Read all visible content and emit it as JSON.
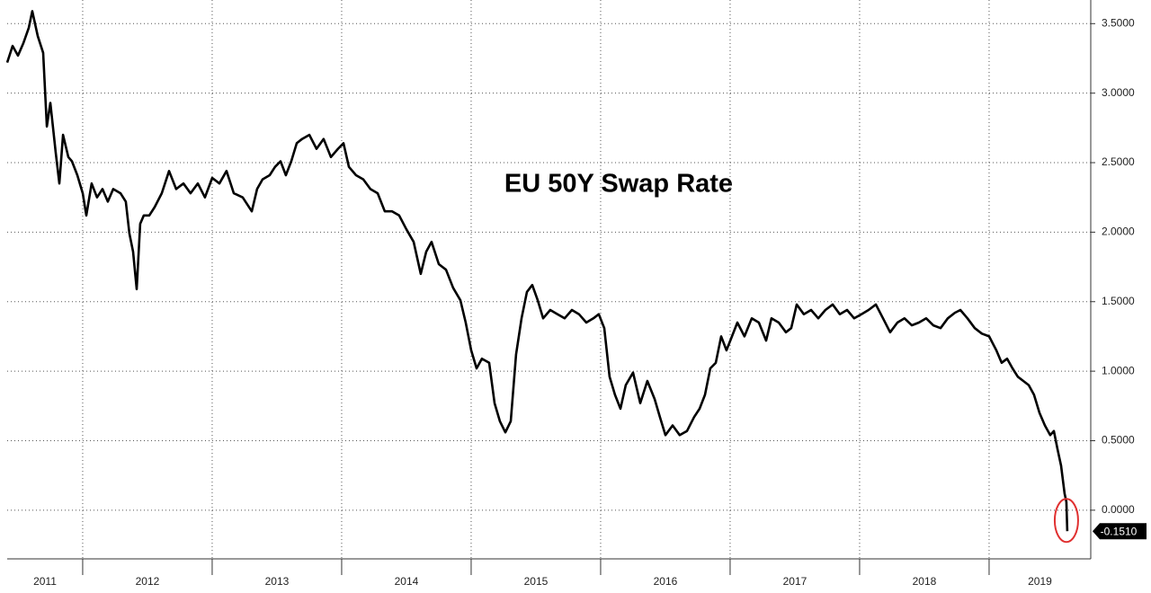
{
  "chart_data": {
    "type": "line",
    "title": "EU 50Y Swap Rate",
    "color": "#000000",
    "x": [
      2011.417,
      2011.459,
      2011.5,
      2011.542,
      2011.584,
      2011.611,
      2011.653,
      2011.695,
      2011.723,
      2011.75,
      2011.792,
      2011.82,
      2011.848,
      2011.889,
      2011.917,
      2011.959,
      2012.0,
      2012.028,
      2012.069,
      2012.111,
      2012.153,
      2012.194,
      2012.236,
      2012.292,
      2012.333,
      2012.361,
      2012.389,
      2012.417,
      2012.444,
      2012.472,
      2012.514,
      2012.556,
      2012.611,
      2012.667,
      2012.722,
      2012.778,
      2012.833,
      2012.889,
      2012.944,
      2013.0,
      2013.056,
      2013.111,
      2013.167,
      2013.236,
      2013.306,
      2013.347,
      2013.389,
      2013.444,
      2013.486,
      2013.528,
      2013.569,
      2013.611,
      2013.653,
      2013.694,
      2013.75,
      2013.806,
      2013.861,
      2013.917,
      2013.972,
      2014.014,
      2014.056,
      2014.111,
      2014.167,
      2014.222,
      2014.278,
      2014.333,
      2014.389,
      2014.444,
      2014.5,
      2014.556,
      2014.611,
      2014.653,
      2014.694,
      2014.75,
      2014.806,
      2014.861,
      2014.917,
      2014.958,
      2015.0,
      2015.042,
      2015.083,
      2015.139,
      2015.181,
      2015.222,
      2015.264,
      2015.306,
      2015.347,
      2015.389,
      2015.431,
      2015.472,
      2015.514,
      2015.556,
      2015.611,
      2015.667,
      2015.722,
      2015.778,
      2015.833,
      2015.889,
      2015.944,
      2015.986,
      2016.028,
      2016.069,
      2016.111,
      2016.153,
      2016.194,
      2016.25,
      2016.306,
      2016.361,
      2016.417,
      2016.458,
      2016.5,
      2016.556,
      2016.611,
      2016.667,
      2016.722,
      2016.764,
      2016.806,
      2016.847,
      2016.889,
      2016.931,
      2016.972,
      2017.014,
      2017.056,
      2017.111,
      2017.167,
      2017.222,
      2017.278,
      2017.319,
      2017.375,
      2017.431,
      2017.472,
      2017.514,
      2017.569,
      2017.625,
      2017.681,
      2017.736,
      2017.792,
      2017.847,
      2017.903,
      2017.958,
      2018.014,
      2018.069,
      2018.125,
      2018.181,
      2018.236,
      2018.292,
      2018.347,
      2018.403,
      2018.458,
      2018.514,
      2018.569,
      2018.625,
      2018.681,
      2018.736,
      2018.778,
      2018.833,
      2018.889,
      2018.944,
      2019.0,
      2019.056,
      2019.097,
      2019.139,
      2019.181,
      2019.222,
      2019.264,
      2019.306,
      2019.347,
      2019.389,
      2019.431,
      2019.472,
      2019.5,
      2019.528,
      2019.556,
      2019.583,
      2019.597,
      2019.604
    ],
    "values": [
      3.22,
      3.34,
      3.27,
      3.36,
      3.47,
      3.59,
      3.41,
      3.29,
      2.76,
      2.93,
      2.57,
      2.35,
      2.7,
      2.54,
      2.51,
      2.41,
      2.28,
      2.12,
      2.35,
      2.25,
      2.31,
      2.22,
      2.31,
      2.28,
      2.22,
      1.99,
      1.86,
      1.59,
      2.06,
      2.12,
      2.12,
      2.18,
      2.28,
      2.44,
      2.31,
      2.35,
      2.28,
      2.35,
      2.25,
      2.39,
      2.35,
      2.44,
      2.28,
      2.25,
      2.15,
      2.31,
      2.38,
      2.41,
      2.47,
      2.51,
      2.41,
      2.51,
      2.64,
      2.67,
      2.7,
      2.6,
      2.67,
      2.54,
      2.6,
      2.64,
      2.47,
      2.41,
      2.38,
      2.31,
      2.28,
      2.15,
      2.15,
      2.12,
      2.02,
      1.93,
      1.7,
      1.86,
      1.93,
      1.77,
      1.73,
      1.6,
      1.51,
      1.35,
      1.15,
      1.02,
      1.09,
      1.06,
      0.77,
      0.64,
      0.56,
      0.64,
      1.12,
      1.38,
      1.57,
      1.62,
      1.51,
      1.38,
      1.44,
      1.41,
      1.38,
      1.44,
      1.41,
      1.35,
      1.38,
      1.41,
      1.31,
      0.96,
      0.83,
      0.73,
      0.9,
      0.99,
      0.77,
      0.93,
      0.8,
      0.67,
      0.54,
      0.61,
      0.54,
      0.57,
      0.67,
      0.73,
      0.83,
      1.02,
      1.06,
      1.25,
      1.15,
      1.25,
      1.35,
      1.25,
      1.38,
      1.35,
      1.22,
      1.38,
      1.35,
      1.28,
      1.31,
      1.48,
      1.41,
      1.44,
      1.38,
      1.44,
      1.48,
      1.41,
      1.44,
      1.38,
      1.41,
      1.44,
      1.48,
      1.38,
      1.28,
      1.35,
      1.38,
      1.33,
      1.35,
      1.38,
      1.33,
      1.31,
      1.38,
      1.42,
      1.44,
      1.38,
      1.31,
      1.27,
      1.25,
      1.15,
      1.06,
      1.09,
      1.02,
      0.96,
      0.93,
      0.9,
      0.83,
      0.7,
      0.61,
      0.54,
      0.57,
      0.44,
      0.32,
      0.12,
      0.06,
      -0.151
    ],
    "last_value_label": "-0.1510",
    "xlim": [
      2011.417,
      2019.785
    ],
    "xticks": [
      {
        "value": 2011,
        "label": "2011"
      },
      {
        "value": 2012,
        "label": "2012"
      },
      {
        "value": 2013,
        "label": "2013"
      },
      {
        "value": 2014,
        "label": "2014"
      },
      {
        "value": 2015,
        "label": "2015"
      },
      {
        "value": 2016,
        "label": "2016"
      },
      {
        "value": 2017,
        "label": "2017"
      },
      {
        "value": 2018,
        "label": "2018"
      },
      {
        "value": 2019,
        "label": "2019"
      }
    ],
    "ylim": [
      -0.35,
      3.67
    ],
    "yticks": [
      {
        "value": 0,
        "label": "0.0000"
      },
      {
        "value": 0.5,
        "label": "0.5000"
      },
      {
        "value": 1,
        "label": "1.0000"
      },
      {
        "value": 1.5,
        "label": "1.5000"
      },
      {
        "value": 2,
        "label": "2.0000"
      },
      {
        "value": 2.5,
        "label": "2.5000"
      },
      {
        "value": 3,
        "label": "3.0000"
      },
      {
        "value": 3.5,
        "label": "3.5000"
      }
    ],
    "grid": true
  }
}
